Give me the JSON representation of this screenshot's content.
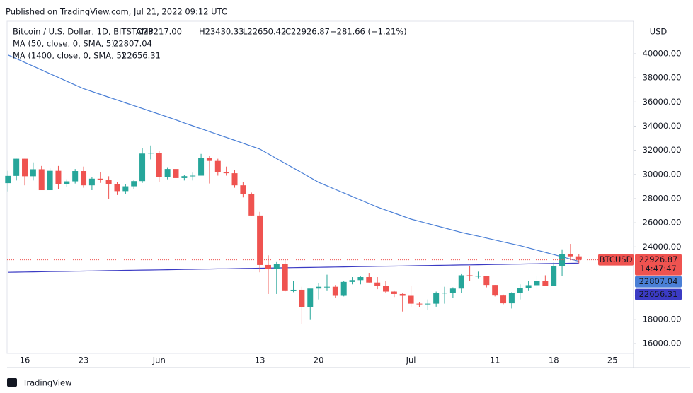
{
  "chart_data": {
    "type": "candlestick",
    "published": "Published on TradingView.com, Jul 21, 2022 09:12 UTC",
    "title": "Bitcoin / U.S. Dollar, 1D, BITSTAMP",
    "header_values": [
      "O23217.00",
      "H23430.33",
      "L22650.42",
      "C22926.87",
      "−281.66 (−1.21%)"
    ],
    "currency": "USD",
    "symbol": "BTCUSD",
    "last_price_label": "22926.87",
    "countdown": "14:47:47",
    "footer": "TradingView",
    "up_color": "#26a69a",
    "down_color": "#ef5350",
    "ylim": [
      15180,
      42690
    ],
    "yticks": [
      {
        "value": 16000,
        "label": "16000.00"
      },
      {
        "value": 18000,
        "label": "18000.00"
      },
      {
        "value": 20000,
        "label": "20000.00"
      },
      {
        "value": 22000,
        "label": "22000.00"
      },
      {
        "value": 24000,
        "label": "24000.00"
      },
      {
        "value": 26000,
        "label": "26000.00"
      },
      {
        "value": 28000,
        "label": "28000.00"
      },
      {
        "value": 30000,
        "label": "30000.00"
      },
      {
        "value": 32000,
        "label": "32000.00"
      },
      {
        "value": 34000,
        "label": "34000.00"
      },
      {
        "value": 36000,
        "label": "36000.00"
      },
      {
        "value": 38000,
        "label": "38000.00"
      },
      {
        "value": 40000,
        "label": "40000.00"
      }
    ],
    "grid": false,
    "categories": [
      null,
      null,
      "16",
      null,
      null,
      null,
      null,
      null,
      null,
      "23",
      null,
      null,
      null,
      null,
      null,
      null,
      null,
      null,
      "Jun",
      null,
      null,
      null,
      null,
      null,
      null,
      null,
      null,
      null,
      null,
      null,
      "13",
      null,
      null,
      null,
      null,
      null,
      null,
      "20",
      null,
      null,
      null,
      null,
      null,
      null,
      null,
      null,
      null,
      null,
      "Jul",
      null,
      null,
      null,
      null,
      null,
      null,
      null,
      null,
      null,
      "11",
      null,
      null,
      null,
      null,
      null,
      null,
      "18",
      null,
      null,
      null,
      null,
      null,
      null,
      "25",
      null,
      null
    ],
    "open": [
      29280,
      29880,
      31300,
      29850,
      30430,
      28700,
      30300,
      29180,
      29430,
      30280,
      29100,
      29650,
      29530,
      29190,
      28620,
      29020,
      29450,
      31730,
      31800,
      29800,
      30450,
      29700,
      29860,
      29900,
      31370,
      31120,
      30200,
      30100,
      29100,
      28400,
      26600,
      22500,
      22150,
      22600,
      20400,
      20450,
      19000,
      20550,
      20700,
      20700,
      19950,
      21100,
      21250,
      21500,
      21050,
      20750,
      20300,
      20100,
      19950,
      19300,
      19250,
      19300,
      20200,
      20200,
      20550,
      21650,
      21600,
      21600,
      20850,
      19970,
      19330,
      20200,
      20580,
      20830,
      21200,
      20790,
      22400,
      23400,
      23217,
      null,
      null,
      null,
      null,
      null,
      null
    ],
    "high": [
      30300,
      31300,
      31300,
      31000,
      30700,
      30500,
      30700,
      29600,
      30450,
      30650,
      29800,
      30200,
      29850,
      29400,
      29200,
      29550,
      32200,
      32400,
      31950,
      30600,
      30650,
      29950,
      30150,
      31700,
      31550,
      31300,
      30650,
      30350,
      29400,
      28500,
      26900,
      23300,
      22800,
      22900,
      21200,
      20700,
      20500,
      21000,
      21700,
      20850,
      21200,
      21500,
      21550,
      21850,
      21500,
      21200,
      20400,
      20150,
      20800,
      19450,
      19650,
      20300,
      20700,
      20650,
      21800,
      22400,
      21950,
      21600,
      20850,
      20050,
      20250,
      20900,
      21200,
      21600,
      21650,
      22700,
      23800,
      24250,
      23430.33,
      null,
      null,
      null,
      null,
      null,
      null
    ],
    "low": [
      28600,
      29500,
      29100,
      29500,
      28700,
      28700,
      28800,
      28950,
      29250,
      28900,
      28700,
      29300,
      28000,
      28300,
      28400,
      28800,
      29300,
      31250,
      29350,
      29600,
      29300,
      29500,
      29500,
      29900,
      29250,
      29900,
      29900,
      28900,
      28100,
      26600,
      21900,
      20100,
      20100,
      20300,
      20250,
      17600,
      17950,
      19650,
      20400,
      19800,
      19900,
      20900,
      20900,
      21050,
      20500,
      20200,
      19850,
      18650,
      19000,
      19000,
      18800,
      19050,
      19300,
      19800,
      20200,
      21200,
      21350,
      20650,
      19900,
      19250,
      18900,
      19650,
      20400,
      20500,
      20800,
      20750,
      21600,
      23000,
      22650.42,
      null,
      null,
      null,
      null,
      null,
      null
    ],
    "close": [
      29880,
      31300,
      29850,
      30430,
      28700,
      30300,
      29180,
      29430,
      30280,
      29100,
      29650,
      29530,
      29190,
      28620,
      29020,
      29450,
      31730,
      31800,
      29800,
      30450,
      29700,
      29860,
      29900,
      31370,
      31120,
      30200,
      30100,
      29100,
      28400,
      26600,
      22500,
      22150,
      22600,
      20400,
      20450,
      19000,
      20550,
      20700,
      20700,
      19950,
      21100,
      21250,
      21500,
      21050,
      20750,
      20300,
      20100,
      19950,
      19300,
      19250,
      19300,
      20200,
      20200,
      20550,
      21650,
      21600,
      21600,
      20850,
      19970,
      19330,
      20200,
      20580,
      20830,
      21200,
      20790,
      22400,
      23400,
      23217,
      22926.87,
      null,
      null,
      null,
      null,
      null,
      null
    ],
    "series": [
      {
        "name": "MA (50, close, 0, SMA, 5)",
        "last_label": "22807.04",
        "color": "#4a7fd6",
        "values": [
          39900,
          39590,
          39280,
          38970,
          38660,
          38340,
          38030,
          37720,
          37410,
          37100,
          36870,
          36630,
          36400,
          36170,
          35930,
          35700,
          35470,
          35230,
          35000,
          34760,
          34520,
          34270,
          34030,
          33790,
          33550,
          33310,
          33070,
          32830,
          32580,
          32340,
          32100,
          31710,
          31310,
          30920,
          30530,
          30140,
          29740,
          29350,
          29060,
          28760,
          28470,
          28180,
          27890,
          27590,
          27300,
          27050,
          26800,
          26550,
          26300,
          26120,
          25930,
          25750,
          25570,
          25380,
          25200,
          25040,
          24890,
          24730,
          24570,
          24410,
          24260,
          24100,
          23920,
          23730,
          23550,
          23360,
          23180,
          22990,
          22807,
          null,
          null,
          null,
          null,
          null,
          null
        ]
      },
      {
        "name": "MA (1400, close, 0, SMA, 5)",
        "last_label": "22656.31",
        "color": "#3b3bc4",
        "values": [
          21900,
          21911,
          21922,
          21933,
          21944,
          21956,
          21967,
          21978,
          21989,
          22000,
          22011,
          22022,
          22033,
          22044,
          22056,
          22067,
          22078,
          22089,
          22100,
          22111,
          22122,
          22133,
          22144,
          22156,
          22167,
          22178,
          22189,
          22200,
          22211,
          22222,
          22233,
          22244,
          22256,
          22267,
          22278,
          22289,
          22300,
          22311,
          22322,
          22333,
          22344,
          22356,
          22367,
          22378,
          22389,
          22400,
          22411,
          22422,
          22433,
          22444,
          22456,
          22467,
          22478,
          22489,
          22500,
          22511,
          22522,
          22533,
          22544,
          22556,
          22567,
          22578,
          22589,
          22600,
          22611,
          22622,
          22633,
          22644,
          22656,
          null,
          null,
          null,
          null,
          null,
          null
        ]
      }
    ]
  }
}
